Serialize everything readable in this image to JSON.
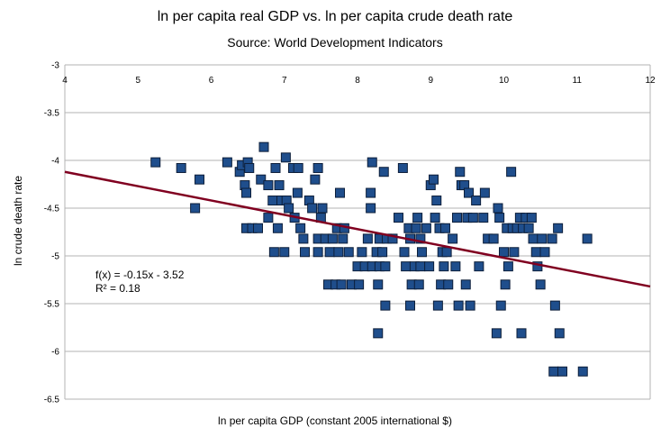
{
  "chart_data": {
    "type": "scatter",
    "title": "ln per capita real GDP vs. ln per capita crude death rate",
    "subtitle": "Source: World Development Indicators",
    "xlabel": "ln per capita GDP (constant 2005 international $)",
    "ylabel": "ln crude death rate",
    "xlim": [
      4,
      12
    ],
    "ylim": [
      -6.5,
      -3
    ],
    "x_ticks": [
      4,
      5,
      6,
      7,
      8,
      9,
      10,
      11,
      12
    ],
    "y_ticks": [
      -3,
      -3.5,
      -4,
      -4.5,
      -5,
      -5.5,
      -6,
      -6.5
    ],
    "x_tick_labels": [
      "4",
      "5",
      "6",
      "7",
      "8",
      "9",
      "10",
      "11",
      "12"
    ],
    "y_tick_labels": [
      "-3",
      "-3.5",
      "-4",
      "-4.5",
      "-5",
      "-5.5",
      "-6",
      "-6.5"
    ],
    "grid": "horizontal",
    "marker_color": "#1f4e8c",
    "trendline_color": "#800020",
    "trendline": {
      "slope": -0.15,
      "intercept": -3.52
    },
    "annotation": {
      "equation": "f(x) = -0.15x - 3.52",
      "r_squared": "R² = 0.18"
    },
    "points": [
      [
        5.24,
        -4.02
      ],
      [
        5.59,
        -4.08
      ],
      [
        5.78,
        -4.5
      ],
      [
        5.84,
        -4.2
      ],
      [
        6.22,
        -4.02
      ],
      [
        6.39,
        -4.12
      ],
      [
        6.42,
        -4.05
      ],
      [
        6.46,
        -4.26
      ],
      [
        6.48,
        -4.34
      ],
      [
        6.5,
        -4.02
      ],
      [
        6.52,
        -4.08
      ],
      [
        6.48,
        -4.71
      ],
      [
        6.56,
        -4.71
      ],
      [
        6.64,
        -4.71
      ],
      [
        6.68,
        -4.2
      ],
      [
        6.72,
        -3.86
      ],
      [
        6.78,
        -4.6
      ],
      [
        6.78,
        -4.26
      ],
      [
        6.84,
        -4.42
      ],
      [
        6.86,
        -4.96
      ],
      [
        6.88,
        -4.08
      ],
      [
        6.91,
        -4.71
      ],
      [
        6.93,
        -4.26
      ],
      [
        6.96,
        -4.42
      ],
      [
        7.0,
        -4.96
      ],
      [
        7.02,
        -3.97
      ],
      [
        7.03,
        -4.42
      ],
      [
        7.06,
        -4.5
      ],
      [
        7.12,
        -4.08
      ],
      [
        7.14,
        -4.6
      ],
      [
        7.18,
        -4.34
      ],
      [
        7.19,
        -4.08
      ],
      [
        7.22,
        -4.71
      ],
      [
        7.26,
        -4.82
      ],
      [
        7.28,
        -4.96
      ],
      [
        7.34,
        -4.42
      ],
      [
        7.38,
        -4.5
      ],
      [
        7.42,
        -4.2
      ],
      [
        7.46,
        -4.08
      ],
      [
        7.46,
        -4.82
      ],
      [
        7.46,
        -4.96
      ],
      [
        7.5,
        -4.6
      ],
      [
        7.52,
        -4.5
      ],
      [
        7.56,
        -4.82
      ],
      [
        7.6,
        -5.3
      ],
      [
        7.62,
        -4.96
      ],
      [
        7.66,
        -4.82
      ],
      [
        7.7,
        -5.3
      ],
      [
        7.72,
        -4.71
      ],
      [
        7.74,
        -4.96
      ],
      [
        7.76,
        -4.34
      ],
      [
        7.78,
        -5.3
      ],
      [
        7.8,
        -4.82
      ],
      [
        7.82,
        -4.71
      ],
      [
        7.88,
        -4.96
      ],
      [
        7.92,
        -5.3
      ],
      [
        8.0,
        -5.11
      ],
      [
        8.02,
        -5.3
      ],
      [
        8.06,
        -4.96
      ],
      [
        8.1,
        -5.11
      ],
      [
        8.14,
        -4.82
      ],
      [
        8.18,
        -4.34
      ],
      [
        8.18,
        -4.5
      ],
      [
        8.2,
        -4.02
      ],
      [
        8.2,
        -5.11
      ],
      [
        8.26,
        -4.96
      ],
      [
        8.28,
        -5.3
      ],
      [
        8.28,
        -5.81
      ],
      [
        8.3,
        -4.82
      ],
      [
        8.3,
        -5.11
      ],
      [
        8.34,
        -4.96
      ],
      [
        8.36,
        -4.12
      ],
      [
        8.38,
        -5.11
      ],
      [
        8.38,
        -5.52
      ],
      [
        8.4,
        -4.82
      ],
      [
        8.48,
        -4.82
      ],
      [
        8.56,
        -4.6
      ],
      [
        8.62,
        -4.08
      ],
      [
        8.64,
        -4.96
      ],
      [
        8.66,
        -5.11
      ],
      [
        8.7,
        -4.71
      ],
      [
        8.72,
        -4.82
      ],
      [
        8.72,
        -5.52
      ],
      [
        8.74,
        -5.3
      ],
      [
        8.78,
        -5.11
      ],
      [
        8.8,
        -4.71
      ],
      [
        8.82,
        -4.6
      ],
      [
        8.84,
        -5.3
      ],
      [
        8.86,
        -4.82
      ],
      [
        8.86,
        -5.11
      ],
      [
        8.88,
        -4.96
      ],
      [
        8.94,
        -4.71
      ],
      [
        8.98,
        -5.11
      ],
      [
        9.0,
        -4.26
      ],
      [
        9.04,
        -4.2
      ],
      [
        9.06,
        -4.6
      ],
      [
        9.08,
        -4.42
      ],
      [
        9.1,
        -5.52
      ],
      [
        9.12,
        -4.71
      ],
      [
        9.14,
        -5.3
      ],
      [
        9.16,
        -4.96
      ],
      [
        9.18,
        -5.11
      ],
      [
        9.2,
        -4.71
      ],
      [
        9.22,
        -4.96
      ],
      [
        9.24,
        -5.3
      ],
      [
        9.3,
        -4.82
      ],
      [
        9.34,
        -5.11
      ],
      [
        9.36,
        -4.6
      ],
      [
        9.38,
        -5.52
      ],
      [
        9.4,
        -4.12
      ],
      [
        9.42,
        -4.26
      ],
      [
        9.46,
        -4.26
      ],
      [
        9.48,
        -5.3
      ],
      [
        9.5,
        -4.6
      ],
      [
        9.52,
        -4.34
      ],
      [
        9.54,
        -5.52
      ],
      [
        9.58,
        -4.6
      ],
      [
        9.62,
        -4.42
      ],
      [
        9.66,
        -5.11
      ],
      [
        9.72,
        -4.6
      ],
      [
        9.74,
        -4.34
      ],
      [
        9.78,
        -4.82
      ],
      [
        9.86,
        -4.82
      ],
      [
        9.9,
        -5.81
      ],
      [
        9.92,
        -4.5
      ],
      [
        9.94,
        -4.6
      ],
      [
        9.96,
        -5.52
      ],
      [
        10.0,
        -4.96
      ],
      [
        10.02,
        -5.3
      ],
      [
        10.04,
        -4.71
      ],
      [
        10.06,
        -5.11
      ],
      [
        10.1,
        -4.12
      ],
      [
        10.12,
        -4.71
      ],
      [
        10.14,
        -4.96
      ],
      [
        10.18,
        -4.71
      ],
      [
        10.22,
        -4.6
      ],
      [
        10.24,
        -5.81
      ],
      [
        10.26,
        -4.71
      ],
      [
        10.3,
        -4.6
      ],
      [
        10.34,
        -4.71
      ],
      [
        10.38,
        -4.6
      ],
      [
        10.4,
        -4.82
      ],
      [
        10.44,
        -4.96
      ],
      [
        10.46,
        -5.11
      ],
      [
        10.5,
        -5.3
      ],
      [
        10.52,
        -4.82
      ],
      [
        10.56,
        -4.96
      ],
      [
        10.66,
        -4.82
      ],
      [
        10.68,
        -6.21
      ],
      [
        10.7,
        -5.52
      ],
      [
        10.74,
        -4.71
      ],
      [
        10.76,
        -5.81
      ],
      [
        10.8,
        -6.21
      ],
      [
        11.08,
        -6.21
      ],
      [
        11.14,
        -4.82
      ]
    ]
  }
}
